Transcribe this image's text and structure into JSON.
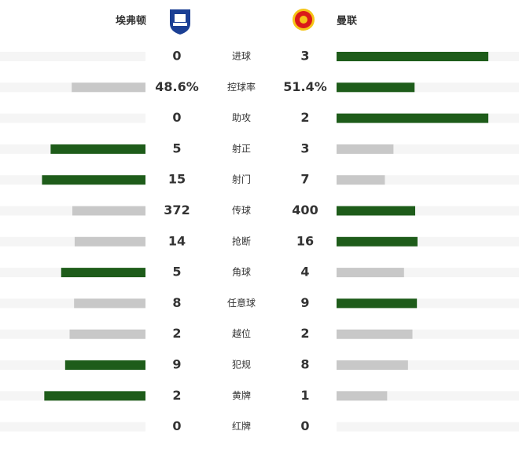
{
  "chart_data": {
    "type": "comparison",
    "series": [
      {
        "name": "埃弗顿",
        "values": [
          0,
          48.6,
          0,
          5,
          15,
          372,
          14,
          5,
          8,
          2,
          9,
          2,
          0
        ],
        "value_labels": [
          "0",
          "48.6%",
          "0",
          "5",
          "15",
          "372",
          "14",
          "5",
          "8",
          "2",
          "9",
          "2",
          "0"
        ]
      },
      {
        "name": "曼联",
        "values": [
          3,
          51.4,
          2,
          3,
          7,
          400,
          16,
          4,
          9,
          2,
          8,
          1,
          0
        ],
        "value_labels": [
          "3",
          "51.4%",
          "2",
          "3",
          "7",
          "400",
          "16",
          "4",
          "9",
          "2",
          "8",
          "1",
          "0"
        ]
      }
    ],
    "categories": [
      "进球",
      "控球率",
      "助攻",
      "射正",
      "射门",
      "传球",
      "抢断",
      "角球",
      "任意球",
      "越位",
      "犯规",
      "黄牌",
      "红牌"
    ],
    "lead_color": "#1e5c1a",
    "trail_color": "#c8c8c8",
    "track_color": "#f5f5f5"
  }
}
